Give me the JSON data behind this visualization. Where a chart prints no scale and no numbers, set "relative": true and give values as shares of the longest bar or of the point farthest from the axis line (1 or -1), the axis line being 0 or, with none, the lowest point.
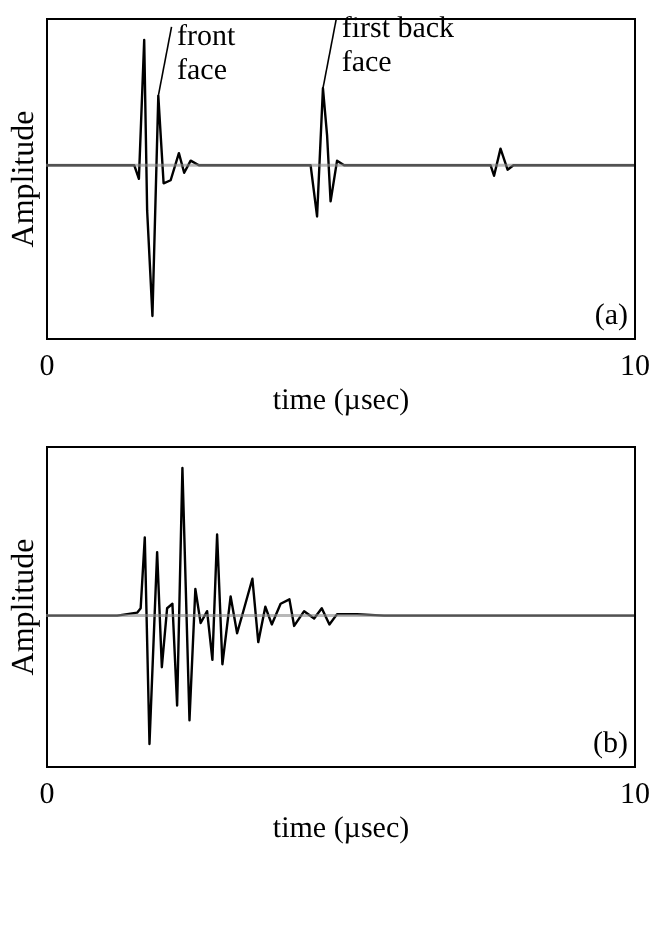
{
  "chart_data": [
    {
      "type": "line",
      "relative": true,
      "color": "#000000",
      "xlabel": "time (µsec)",
      "ylabel": "Amplitude",
      "xlim": [
        0,
        10
      ],
      "xticks": [
        0,
        10
      ],
      "tick_labels": "x",
      "grid": false,
      "x": [
        0,
        1.5,
        1.58,
        1.67,
        1.72,
        1.81,
        1.91,
        2.0,
        2.12,
        2.26,
        2.35,
        2.46,
        2.6,
        4.5,
        4.61,
        4.71,
        4.78,
        4.84,
        4.95,
        5.07,
        7.56,
        7.62,
        7.73,
        7.85,
        7.95,
        10
      ],
      "values": [
        0,
        0,
        -0.09,
        0.83,
        -0.3,
        -1,
        0.46,
        -0.12,
        -0.1,
        0.08,
        -0.05,
        0.03,
        0,
        0,
        -0.34,
        0.51,
        0.2,
        -0.24,
        0.03,
        0,
        0,
        -0.07,
        0.11,
        -0.03,
        0,
        0
      ],
      "ref_lines": [
        {
          "axis": "y",
          "value": 0
        }
      ],
      "annotations": [
        {
          "text": "front\nface",
          "x": 1.91,
          "y": 0.46
        },
        {
          "text": "first back\nface",
          "x": 4.71,
          "y": 0.51
        },
        "(a)"
      ]
    },
    {
      "type": "line",
      "relative": true,
      "color": "#000000",
      "xlabel": "time (µsec)",
      "ylabel": "Amplitude",
      "xlim": [
        0,
        10
      ],
      "xticks": [
        0,
        10
      ],
      "tick_labels": "x",
      "grid": false,
      "x": [
        0,
        1.21,
        1.55,
        1.61,
        1.68,
        1.76,
        1.89,
        1.97,
        2.06,
        2.15,
        2.23,
        2.32,
        2.44,
        2.54,
        2.63,
        2.74,
        2.83,
        2.91,
        3.0,
        3.14,
        3.25,
        3.37,
        3.51,
        3.61,
        3.73,
        3.84,
        3.99,
        4.14,
        4.22,
        4.39,
        4.56,
        4.69,
        4.82,
        4.95,
        5.29,
        5.75,
        10
      ],
      "values": [
        0,
        0,
        0.02,
        0.05,
        0.53,
        -0.87,
        0.43,
        -0.35,
        0.05,
        0.08,
        -0.61,
        1,
        -0.71,
        0.18,
        -0.05,
        0.03,
        -0.3,
        0.55,
        -0.33,
        0.13,
        -0.12,
        0.05,
        0.25,
        -0.18,
        0.06,
        -0.06,
        0.08,
        0.11,
        -0.07,
        0.03,
        -0.02,
        0.05,
        -0.06,
        0.01,
        0.01,
        0,
        0
      ],
      "ref_lines": [
        {
          "axis": "y",
          "value": 0
        }
      ],
      "annotations": [
        "(b)"
      ]
    }
  ]
}
